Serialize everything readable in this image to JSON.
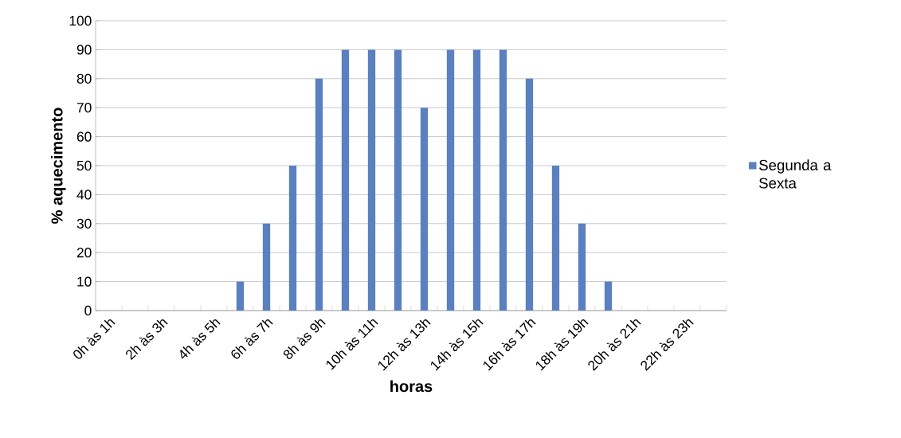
{
  "chart_data": {
    "type": "bar",
    "xlabel": "horas",
    "ylabel": "% aquecimento",
    "categories": [
      "0h às 1h",
      null,
      "2h às 3h",
      null,
      "4h às 5h",
      null,
      "6h às 7h",
      null,
      "8h às 9h",
      null,
      "10h às 11h",
      null,
      "12h às 13h",
      null,
      "14h às 15h",
      null,
      "16h às 17h",
      null,
      "18h às 19h",
      null,
      "20h às 21h",
      null,
      "22h às 23h",
      null
    ],
    "series": [
      {
        "name": "Segunda a Sexta",
        "color": "#5b80c0",
        "values": [
          0,
          0,
          0,
          0,
          0,
          10,
          30,
          50,
          80,
          90,
          90,
          90,
          70,
          90,
          90,
          90,
          80,
          50,
          30,
          10,
          0,
          0,
          0,
          0
        ]
      }
    ],
    "ylim": [
      0,
      100
    ],
    "yticks": [
      0,
      10,
      20,
      30,
      40,
      50,
      60,
      70,
      80,
      90,
      100
    ],
    "grid": "y",
    "legend": "right"
  }
}
